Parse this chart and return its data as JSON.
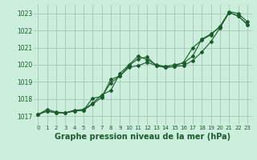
{
  "bg_color": "#cceedd",
  "grid_color": "#aaccbb",
  "line_color": "#1a5c2a",
  "marker_color": "#1a5c2a",
  "xlabel": "Graphe pression niveau de la mer (hPa)",
  "xlabel_fontsize": 7,
  "ylim": [
    1016.5,
    1023.5
  ],
  "xlim": [
    -0.5,
    23.5
  ],
  "yticks": [
    1017,
    1018,
    1019,
    1020,
    1021,
    1022,
    1023
  ],
  "xticks": [
    0,
    1,
    2,
    3,
    4,
    5,
    6,
    7,
    8,
    9,
    10,
    11,
    12,
    13,
    14,
    15,
    16,
    17,
    18,
    19,
    20,
    21,
    22,
    23
  ],
  "line1": [
    1017.1,
    1017.4,
    1017.25,
    1017.2,
    1017.35,
    1017.4,
    1017.75,
    1018.25,
    1018.5,
    1019.5,
    1020.0,
    1020.5,
    1020.3,
    1020.0,
    1019.9,
    1020.0,
    1020.1,
    1020.5,
    1021.5,
    1021.8,
    1022.2,
    1023.1,
    1023.0,
    1022.5
  ],
  "line2": [
    1017.1,
    1017.3,
    1017.2,
    1017.2,
    1017.3,
    1017.35,
    1017.7,
    1018.1,
    1019.15,
    1019.35,
    1019.95,
    1020.35,
    1020.45,
    1019.95,
    1019.85,
    1019.9,
    1019.95,
    1020.25,
    1020.75,
    1021.35,
    1022.15,
    1023.05,
    1022.85,
    1022.35
  ],
  "line3": [
    1017.1,
    1017.3,
    1017.2,
    1017.2,
    1017.3,
    1017.35,
    1018.05,
    1018.15,
    1018.95,
    1019.35,
    1019.85,
    1019.95,
    1020.15,
    1019.95,
    1019.85,
    1019.9,
    1020.15,
    1021.0,
    1021.45,
    1021.75,
    1022.25,
    1023.05,
    1022.85,
    1022.35
  ]
}
